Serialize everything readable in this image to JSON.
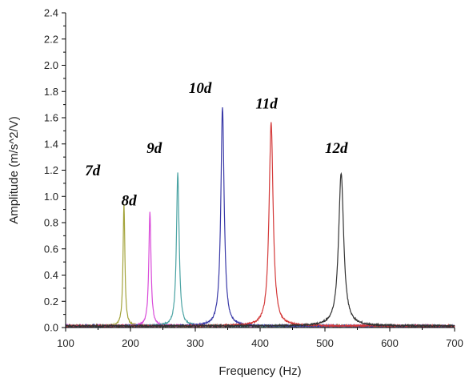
{
  "chart_data": {
    "type": "line",
    "title": "",
    "xlabel": "Frequency (Hz)",
    "ylabel": "Amplitude (m/s^2/V)",
    "xlim": [
      100,
      700
    ],
    "ylim": [
      0,
      2.4
    ],
    "x_ticks": [
      "100",
      "200",
      "300",
      "400",
      "500",
      "600",
      "700"
    ],
    "y_ticks": [
      "0.0",
      "0.2",
      "0.4",
      "0.6",
      "0.8",
      "1.0",
      "1.2",
      "1.4",
      "1.6",
      "1.8",
      "2.0",
      "2.2",
      "2.4"
    ],
    "grid": false,
    "legend": "none",
    "series": [
      {
        "name": "7d",
        "color": "#a3a33a",
        "peak_x": 190,
        "peak_y": 0.93,
        "label_x": 130,
        "label_y": 1.16
      },
      {
        "name": "8d",
        "color": "#d94ad9",
        "peak_x": 230,
        "peak_y": 0.87,
        "label_x": 186,
        "label_y": 0.93
      },
      {
        "name": "9d",
        "color": "#4aa3a3",
        "peak_x": 273,
        "peak_y": 1.17,
        "label_x": 225,
        "label_y": 1.33
      },
      {
        "name": "10d",
        "color": "#3a3aa8",
        "peak_x": 342,
        "peak_y": 1.67,
        "label_x": 290,
        "label_y": 1.79
      },
      {
        "name": "11d",
        "color": "#d43a3a",
        "peak_x": 417,
        "peak_y": 1.55,
        "label_x": 393,
        "label_y": 1.67
      },
      {
        "name": "12d",
        "color": "#333333",
        "peak_x": 525,
        "peak_y": 1.16,
        "label_x": 500,
        "label_y": 1.33
      }
    ]
  }
}
